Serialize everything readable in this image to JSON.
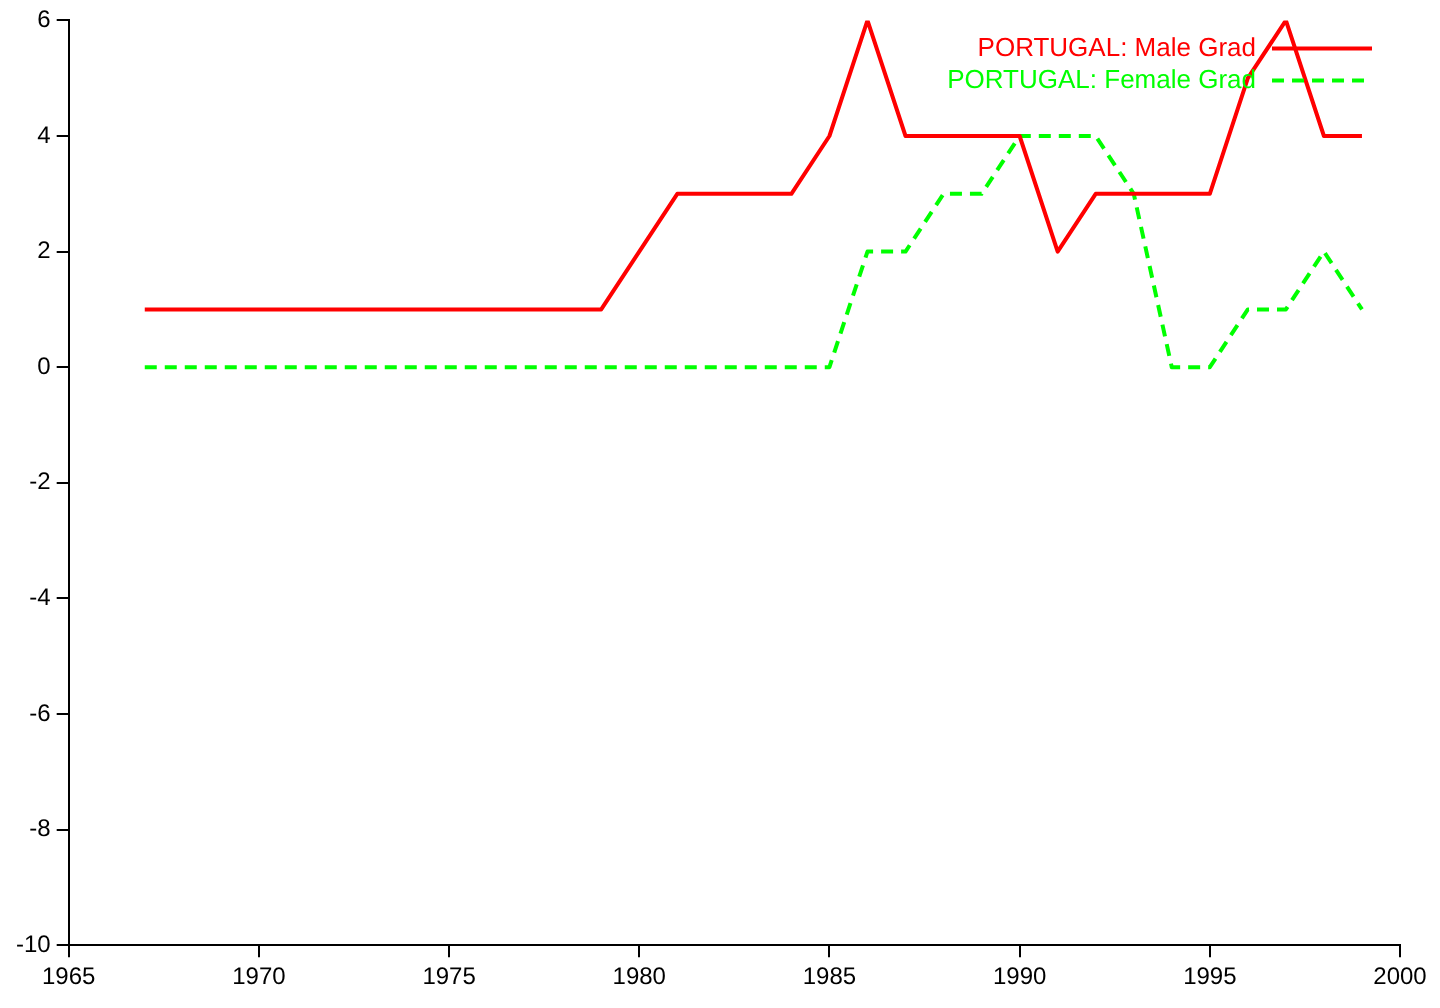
{
  "chart_data": {
    "type": "line",
    "x": [
      1967,
      1968,
      1969,
      1970,
      1971,
      1972,
      1973,
      1974,
      1975,
      1976,
      1977,
      1978,
      1979,
      1980,
      1981,
      1982,
      1983,
      1984,
      1985,
      1986,
      1987,
      1988,
      1989,
      1990,
      1991,
      1992,
      1993,
      1994,
      1995,
      1996,
      1997,
      1998,
      1999
    ],
    "series": [
      {
        "name": "PORTUGAL: Male Grad",
        "color": "#ff0000",
        "line_style": "solid",
        "values": [
          1,
          1,
          1,
          1,
          1,
          1,
          1,
          1,
          1,
          1,
          1,
          1,
          1,
          2,
          3,
          3,
          3,
          3,
          4,
          6,
          4,
          4,
          4,
          4,
          2,
          3,
          3,
          3,
          3,
          5,
          6,
          4,
          4
        ]
      },
      {
        "name": "PORTUGAL: Female Grad",
        "color": "#00ff00",
        "line_style": "dashed",
        "values": [
          0,
          0,
          0,
          0,
          0,
          0,
          0,
          0,
          0,
          0,
          0,
          0,
          0,
          0,
          0,
          0,
          0,
          0,
          0,
          2,
          2,
          3,
          3,
          4,
          4,
          4,
          3,
          0,
          0,
          1,
          1,
          2,
          1
        ]
      }
    ],
    "xlim": [
      1965,
      2000
    ],
    "xticks": [
      1965,
      1970,
      1975,
      1980,
      1985,
      1990,
      1995,
      2000
    ],
    "ylim": [
      -10,
      6
    ],
    "yticks": [
      -10,
      -8,
      -6,
      -4,
      -2,
      0,
      2,
      4,
      6
    ],
    "grid": false,
    "legend": "top right",
    "marker": "none"
  }
}
